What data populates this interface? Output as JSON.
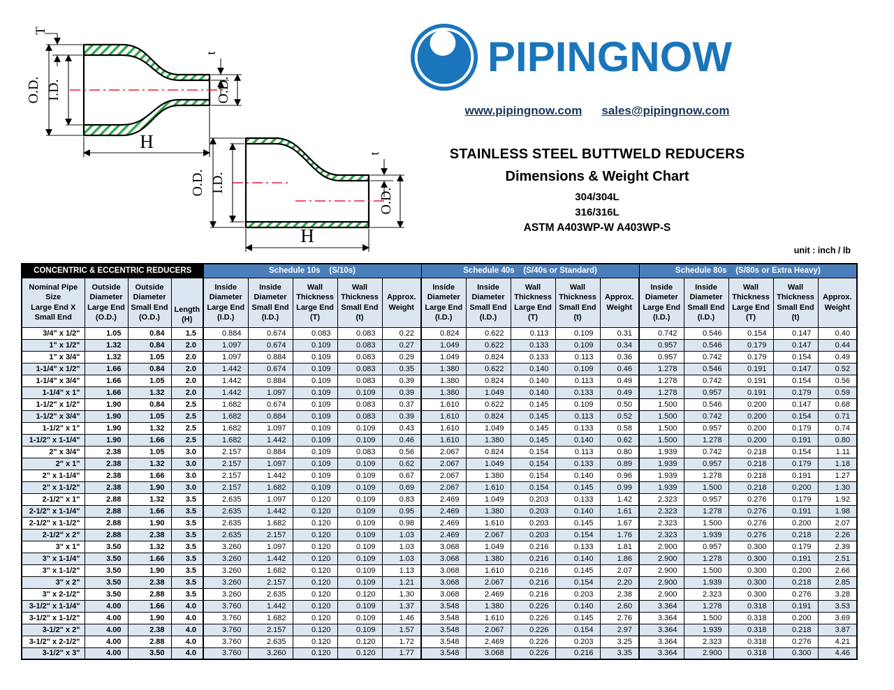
{
  "logo": {
    "brand": "PIPINGNOW",
    "icon": "pipe-ring-logo-icon",
    "color": "#1B75BB"
  },
  "contact": {
    "website": "www.pipingnow.com",
    "email": "sales@pipingnow.com"
  },
  "title": {
    "line1": "STAINLESS STEEL BUTTWELD REDUCERS",
    "line2": "Dimensions & Weight Chart",
    "line3": "304/304L",
    "line4": "316/316L",
    "line5": "ASTM A403WP-W   A403WP-S"
  },
  "unit_note": "unit : inch / lb",
  "diagrams": {
    "concentric": {
      "description": "concentric buttweld reducer cross-section",
      "labels": {
        "T": "T",
        "od_left": "O.D.",
        "id_left": "I.D.",
        "t": "t",
        "od_right": "O.D.",
        "h": "H"
      }
    },
    "eccentric": {
      "description": "eccentric buttweld reducer cross-section",
      "labels": {
        "od_left": "O.D.",
        "id_left": "I.D.",
        "t": "t",
        "od_right": "O.D.",
        "h": "H"
      }
    }
  },
  "table": {
    "group_headers": [
      {
        "label": "CONCENTRIC & ECCENTRIC REDUCERS",
        "span": 4,
        "style": "black"
      },
      {
        "label": "Schedule 10s    (S/10s)",
        "span": 5,
        "style": "blue"
      },
      {
        "label": "Schedule 40s    (S/40s or Standard)",
        "span": 5,
        "style": "blue"
      },
      {
        "label": "Schedule 80s    (S/80s or Extra Heavy)",
        "span": 5,
        "style": "blue"
      }
    ],
    "columns": [
      "Nominal Pipe\nSize\nLarge End X\nSmall End",
      "Outside\nDiameter\nLarge End\n(O.D.)",
      "Outside\nDiameter\nSmall End\n(O.D.)",
      "Length\n(H)",
      "Inside\nDiameter\nLarge End\n(I.D.)",
      "Inside\nDiameter\nSmall End\n(I.D.)",
      "Wall\nThickness\nLarge End\n(T)",
      "Wall\nThickness\nSmall End\n(t)",
      "Approx.\nWeight",
      "Inside\nDiameter\nLarge End\n(I.D.)",
      "Inside\nDiameter\nSmall End\n(I.D.)",
      "Wall\nThickness\nLarge End\n(T)",
      "Wall\nThickness\nSmall End\n(t)",
      "Approx.\nWeight",
      "Inside\nDiameter\nLarge End\n(I.D.)",
      "Inside\nDiameter\nSmall End\n(I.D.)",
      "Wall\nThickness\nLarge End\n(T)",
      "Wall\nThickness\nSmall End\n(t)",
      "Approx.\nWeight"
    ],
    "rows": [
      [
        "3/4\" x 1/2\"",
        "1.05",
        "0.84",
        "1.5",
        "0.884",
        "0.674",
        "0.083",
        "0.083",
        "0.22",
        "0.824",
        "0.622",
        "0.113",
        "0.109",
        "0.31",
        "0.742",
        "0.546",
        "0.154",
        "0.147",
        "0.40"
      ],
      [
        "1\" x 1/2\"",
        "1.32",
        "0.84",
        "2.0",
        "1.097",
        "0.674",
        "0.109",
        "0.083",
        "0.27",
        "1.049",
        "0.622",
        "0.133",
        "0.109",
        "0.34",
        "0.957",
        "0.546",
        "0.179",
        "0.147",
        "0.44"
      ],
      [
        "1\" x 3/4\"",
        "1.32",
        "1.05",
        "2.0",
        "1.097",
        "0.884",
        "0.109",
        "0.083",
        "0.29",
        "1.049",
        "0.824",
        "0.133",
        "0.113",
        "0.36",
        "0.957",
        "0.742",
        "0.179",
        "0.154",
        "0.49"
      ],
      [
        "1-1/4\" x 1/2\"",
        "1.66",
        "0.84",
        "2.0",
        "1.442",
        "0.674",
        "0.109",
        "0.083",
        "0.35",
        "1.380",
        "0.622",
        "0.140",
        "0.109",
        "0.46",
        "1.278",
        "0.546",
        "0.191",
        "0.147",
        "0.52"
      ],
      [
        "1-1/4\" x 3/4\"",
        "1.66",
        "1.05",
        "2.0",
        "1.442",
        "0.884",
        "0.109",
        "0.083",
        "0.39",
        "1.380",
        "0.824",
        "0.140",
        "0.113",
        "0.49",
        "1.278",
        "0.742",
        "0.191",
        "0.154",
        "0.56"
      ],
      [
        "1-1/4\" x 1\"",
        "1.66",
        "1.32",
        "2.0",
        "1.442",
        "1.097",
        "0.109",
        "0.109",
        "0.39",
        "1.380",
        "1.049",
        "0.140",
        "0.133",
        "0.49",
        "1.278",
        "0.957",
        "0.191",
        "0.179",
        "0.59"
      ],
      [
        "1-1/2\" x 1/2\"",
        "1.90",
        "0.84",
        "2.5",
        "1.682",
        "0.674",
        "0.109",
        "0.083",
        "0.37",
        "1.610",
        "0.622",
        "0.145",
        "0.109",
        "0.50",
        "1.500",
        "0.546",
        "0.200",
        "0.147",
        "0.68"
      ],
      [
        "1-1/2\" x 3/4\"",
        "1.90",
        "1.05",
        "2.5",
        "1.682",
        "0.884",
        "0.109",
        "0.083",
        "0.39",
        "1.610",
        "0.824",
        "0.145",
        "0.113",
        "0.52",
        "1.500",
        "0.742",
        "0.200",
        "0.154",
        "0.71"
      ],
      [
        "1-1/2\" x 1\"",
        "1.90",
        "1.32",
        "2.5",
        "1.682",
        "1.097",
        "0.109",
        "0.109",
        "0.43",
        "1.610",
        "1.049",
        "0.145",
        "0.133",
        "0.58",
        "1.500",
        "0.957",
        "0.200",
        "0.179",
        "0.74"
      ],
      [
        "1-1/2\" x 1-1/4\"",
        "1.90",
        "1.66",
        "2.5",
        "1.682",
        "1.442",
        "0.109",
        "0.109",
        "0.46",
        "1.610",
        "1.380",
        "0.145",
        "0.140",
        "0.62",
        "1.500",
        "1.278",
        "0.200",
        "0.191",
        "0.80"
      ],
      [
        "2\" x 3/4\"",
        "2.38",
        "1.05",
        "3.0",
        "2.157",
        "0.884",
        "0.109",
        "0.083",
        "0.56",
        "2.067",
        "0.824",
        "0.154",
        "0.113",
        "0.80",
        "1.939",
        "0.742",
        "0.218",
        "0.154",
        "1.11"
      ],
      [
        "2\" x 1\"",
        "2.38",
        "1.32",
        "3.0",
        "2.157",
        "1.097",
        "0.109",
        "0.109",
        "0.62",
        "2.067",
        "1.049",
        "0.154",
        "0.133",
        "0.89",
        "1.939",
        "0.957",
        "0.218",
        "0.179",
        "1.18"
      ],
      [
        "2\" x 1-1/4\"",
        "2.38",
        "1.66",
        "3.0",
        "2.157",
        "1.442",
        "0.109",
        "0.109",
        "0.67",
        "2.067",
        "1.380",
        "0.154",
        "0.140",
        "0.96",
        "1.939",
        "1.278",
        "0.218",
        "0.191",
        "1.27"
      ],
      [
        "2\" x 1-1/2\"",
        "2.38",
        "1.90",
        "3.0",
        "2.157",
        "1.682",
        "0.109",
        "0.109",
        "0.69",
        "2.067",
        "1.610",
        "0.154",
        "0.145",
        "0.99",
        "1.939",
        "1.500",
        "0.218",
        "0.200",
        "1.30"
      ],
      [
        "2-1/2\" x 1\"",
        "2.88",
        "1.32",
        "3.5",
        "2.635",
        "1.097",
        "0.120",
        "0.109",
        "0.83",
        "2.469",
        "1.049",
        "0.203",
        "0.133",
        "1.42",
        "2.323",
        "0.957",
        "0.276",
        "0.179",
        "1.92"
      ],
      [
        "2-1/2\" x 1-1/4\"",
        "2.88",
        "1.66",
        "3.5",
        "2.635",
        "1.442",
        "0.120",
        "0.109",
        "0.95",
        "2.469",
        "1.380",
        "0.203",
        "0.140",
        "1.61",
        "2.323",
        "1.278",
        "0.276",
        "0.191",
        "1.98"
      ],
      [
        "2-1/2\" x 1-1/2\"",
        "2.88",
        "1.90",
        "3.5",
        "2.635",
        "1.682",
        "0.120",
        "0.109",
        "0.98",
        "2.469",
        "1.610",
        "0.203",
        "0.145",
        "1.67",
        "2.323",
        "1.500",
        "0.276",
        "0.200",
        "2.07"
      ],
      [
        "2-1/2\" x 2\"",
        "2.88",
        "2.38",
        "3.5",
        "2.635",
        "2.157",
        "0.120",
        "0.109",
        "1.03",
        "2.469",
        "2.067",
        "0.203",
        "0.154",
        "1.76",
        "2.323",
        "1.939",
        "0.276",
        "0.218",
        "2.26"
      ],
      [
        "3\" x 1\"",
        "3.50",
        "1.32",
        "3.5",
        "3.260",
        "1.097",
        "0.120",
        "0.109",
        "1.03",
        "3.068",
        "1.049",
        "0.216",
        "0.133",
        "1.81",
        "2.900",
        "0.957",
        "0.300",
        "0.179",
        "2.39"
      ],
      [
        "3\" x 1-1/4\"",
        "3.50",
        "1.66",
        "3.5",
        "3.260",
        "1.442",
        "0.120",
        "0.109",
        "1.03",
        "3.068",
        "1.380",
        "0.216",
        "0.140",
        "1.86",
        "2.900",
        "1.278",
        "0.300",
        "0.191",
        "2.51"
      ],
      [
        "3\" x 1-1/2\"",
        "3.50",
        "1.90",
        "3.5",
        "3.260",
        "1.682",
        "0.120",
        "0.109",
        "1.13",
        "3.068",
        "1.610",
        "0.216",
        "0.145",
        "2.07",
        "2.900",
        "1.500",
        "0.300",
        "0.200",
        "2.66"
      ],
      [
        "3\" x 2\"",
        "3.50",
        "2.38",
        "3.5",
        "3.260",
        "2.157",
        "0.120",
        "0.109",
        "1.21",
        "3.068",
        "2.067",
        "0.216",
        "0.154",
        "2.20",
        "2.900",
        "1.939",
        "0.300",
        "0.218",
        "2.85"
      ],
      [
        "3\" x 2-1/2\"",
        "3.50",
        "2.88",
        "3.5",
        "3.260",
        "2.635",
        "0.120",
        "0.120",
        "1.30",
        "3.068",
        "2.469",
        "0.216",
        "0.203",
        "2.38",
        "2.900",
        "2.323",
        "0.300",
        "0.276",
        "3.28"
      ],
      [
        "3-1/2\" x 1-1/4\"",
        "4.00",
        "1.66",
        "4.0",
        "3.760",
        "1.442",
        "0.120",
        "0.109",
        "1.37",
        "3.548",
        "1.380",
        "0.226",
        "0.140",
        "2.60",
        "3.364",
        "1.278",
        "0.318",
        "0.191",
        "3.53"
      ],
      [
        "3-1/2\" x 1-1/2\"",
        "4.00",
        "1.90",
        "4.0",
        "3.760",
        "1.682",
        "0.120",
        "0.109",
        "1.46",
        "3.548",
        "1.610",
        "0.226",
        "0.145",
        "2.76",
        "3.364",
        "1.500",
        "0.318",
        "0.200",
        "3.69"
      ],
      [
        "3-1/2\" x 2\"",
        "4.00",
        "2.38",
        "4.0",
        "3.760",
        "2.157",
        "0.120",
        "0.109",
        "1.57",
        "3.548",
        "2.067",
        "0.226",
        "0.154",
        "2.97",
        "3.364",
        "1.939",
        "0.318",
        "0.218",
        "3.87"
      ],
      [
        "3-1/2\" x 2-1/2\"",
        "4.00",
        "2.88",
        "4.0",
        "3.760",
        "2.635",
        "0.120",
        "0.120",
        "1.72",
        "3.548",
        "2.469",
        "0.226",
        "0.203",
        "3.25",
        "3.364",
        "2.323",
        "0.318",
        "0.276",
        "4.21"
      ],
      [
        "3-1/2\" x 3\"",
        "4.00",
        "3.50",
        "4.0",
        "3.760",
        "3.260",
        "0.120",
        "0.120",
        "1.77",
        "3.548",
        "3.068",
        "0.226",
        "0.216",
        "3.35",
        "3.364",
        "2.900",
        "0.318",
        "0.300",
        "4.46"
      ]
    ]
  },
  "colors": {
    "header_blue": "#4A7EBB",
    "header_black": "#000000",
    "row_alt": "#DCE6F1",
    "logo_blue": "#1B75BB",
    "hatch_green": "#2FA94F",
    "centerline_red": "#EC1C2D",
    "link_navy": "#17375D"
  }
}
